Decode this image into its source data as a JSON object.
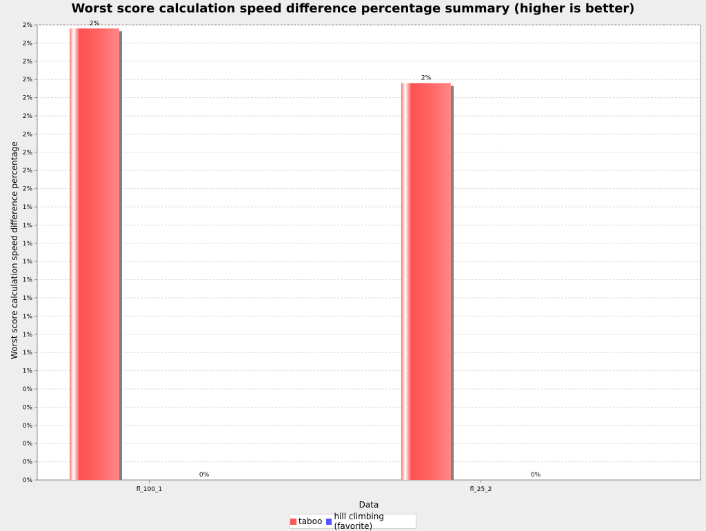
{
  "chart_data": {
    "type": "bar",
    "title": "Worst score calculation speed difference percentage summary (higher is better)",
    "xlabel": "Data",
    "ylabel": "Worst score calculation speed difference percentage",
    "categories": [
      "fl_100_1",
      "fl_25_2"
    ],
    "series": [
      {
        "name": "taboo",
        "color": "#ff5555",
        "values": [
          0.0248,
          0.0218
        ]
      },
      {
        "name": "hill climbing (favorite)",
        "color": "#5555ff",
        "values": [
          0.0,
          0.0
        ]
      }
    ],
    "value_labels": [
      [
        "2%",
        "0%"
      ],
      [
        "2%",
        "0%"
      ]
    ],
    "ylim": [
      0,
      0.025
    ],
    "ytick_step": 0.001,
    "ytick_labels": [
      "0%",
      "0%",
      "0%",
      "0%",
      "0%",
      "0%",
      "1%",
      "1%",
      "1%",
      "1%",
      "1%",
      "1%",
      "1%",
      "1%",
      "1%",
      "1%",
      "2%",
      "2%",
      "2%",
      "2%",
      "2%",
      "2%",
      "2%",
      "2%",
      "2%",
      "2%"
    ],
    "grid": true,
    "legend_position": "bottom"
  }
}
